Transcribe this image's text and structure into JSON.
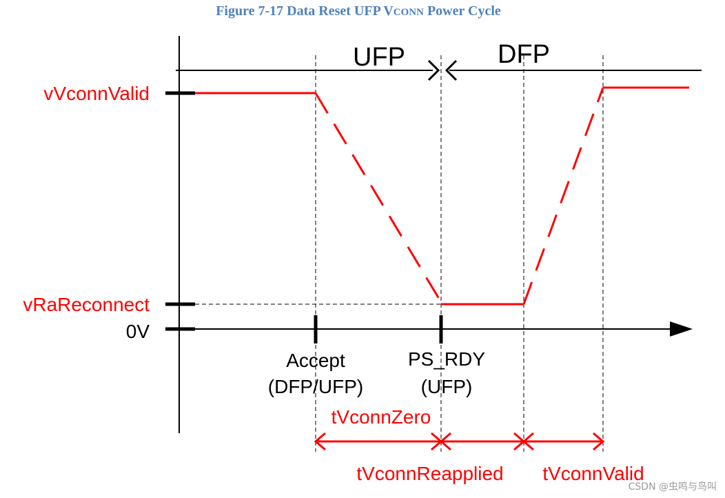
{
  "figure": {
    "title_main": "Figure 7-17 Data Reset UFP V",
    "title_smallcaps": "CONN",
    "title_tail": " Power Cycle"
  },
  "y_levels": {
    "vconn_valid": "vVconnValid",
    "vra_reconnect": "vRaReconnect",
    "zero": "0V"
  },
  "roles": {
    "ufp": "UFP",
    "dfp": "DFP"
  },
  "events": {
    "accept_line1": "Accept",
    "accept_line2": "(DFP/UFP)",
    "psrdy_line1": "PS_RDY",
    "psrdy_line2": "(UFP)"
  },
  "timings": {
    "t_vconn_zero": "tVconnZero",
    "t_vconn_reapplied": "tVconnReapplied",
    "t_vconn_valid": "tVconnValid"
  },
  "colors": {
    "signal": "#ff0000",
    "axis": "#000000",
    "title": "#4f81bd"
  },
  "watermark": "CSDN @虫鸣与鸟叫"
}
